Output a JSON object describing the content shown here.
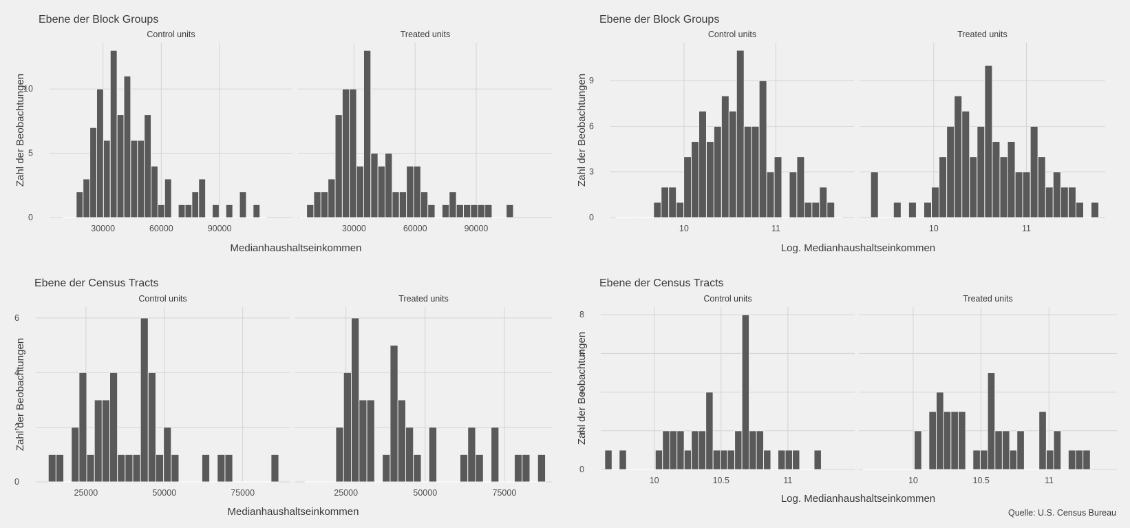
{
  "caption": "Quelle: U.S. Census Bureau",
  "chart_data": [
    {
      "type": "bar",
      "title": "Ebene der Block Groups",
      "xlabel": "Medianhaushaltseinkommen",
      "ylabel": "Zahl der Beobachtungen",
      "x_ticks": [
        30000,
        60000,
        90000
      ],
      "y_ticks": [
        0,
        5,
        10
      ],
      "xlim": [
        2500,
        127500
      ],
      "ylim": [
        0,
        13.6
      ],
      "bin_width": 3500,
      "grid": true,
      "facets": [
        {
          "label": "Control units",
          "bins_start": 9250,
          "counts": [
            0,
            0,
            2,
            3,
            7,
            10,
            6,
            13,
            8,
            11,
            6,
            6,
            8,
            4,
            1,
            3,
            0,
            1,
            1,
            2,
            3,
            0,
            1,
            0,
            1,
            0,
            2,
            0,
            1,
            0
          ]
        },
        {
          "label": "Treated units",
          "bins_start": 3250,
          "counts": [
            0,
            1,
            2,
            2,
            3,
            8,
            10,
            10,
            4,
            13,
            5,
            4,
            5,
            2,
            2,
            4,
            4,
            2,
            1,
            0,
            1,
            2,
            1,
            1,
            1,
            1,
            1,
            0,
            0,
            1
          ]
        }
      ]
    },
    {
      "type": "bar",
      "title": "Ebene der Block Groups",
      "xlabel": "Log. Medianhaushaltseinkommen",
      "ylabel": "Zahl der Beobachtungen",
      "x_ticks": [
        10,
        11
      ],
      "y_ticks": [
        0,
        3,
        6,
        9
      ],
      "xlim": [
        9.2,
        11.85
      ],
      "ylim": [
        0,
        11.5
      ],
      "bin_width": 0.082,
      "grid": true,
      "facets": [
        {
          "label": "Control units",
          "bins_start": 9.26,
          "counts": [
            0,
            0,
            0,
            0,
            0,
            1,
            2,
            2,
            1,
            4,
            5,
            7,
            5,
            6,
            8,
            7,
            11,
            6,
            6,
            9,
            3,
            4,
            0,
            3,
            4,
            1,
            1,
            2,
            1,
            0
          ]
        },
        {
          "label": "Treated units",
          "bins_start": 9.32,
          "counts": [
            3,
            0,
            0,
            1,
            0,
            1,
            0,
            1,
            2,
            4,
            6,
            8,
            7,
            4,
            6,
            10,
            5,
            4,
            5,
            3,
            3,
            6,
            4,
            2,
            3,
            2,
            2,
            1,
            0,
            1
          ]
        }
      ]
    },
    {
      "type": "bar",
      "title": "Ebene der Census Tracts",
      "xlabel": "Medianhaushaltseinkommen",
      "ylabel": "Zahl der Beobachtungen",
      "x_ticks": [
        25000,
        50000,
        75000
      ],
      "y_ticks": [
        0,
        2,
        4,
        6
      ],
      "xlim": [
        9000,
        90000
      ],
      "ylim": [
        0,
        6.4
      ],
      "bin_width": 2450,
      "grid": true,
      "facets": [
        {
          "label": "Control units",
          "bins_start": 13000,
          "counts": [
            1,
            1,
            0,
            2,
            4,
            1,
            3,
            3,
            4,
            1,
            1,
            1,
            6,
            4,
            1,
            2,
            1,
            0,
            0,
            0,
            1,
            0,
            1,
            1,
            0,
            0,
            0,
            0,
            0,
            1
          ]
        },
        {
          "label": "Treated units",
          "bins_start": 12000,
          "counts": [
            0,
            0,
            0,
            0,
            2,
            4,
            6,
            3,
            3,
            0,
            1,
            5,
            3,
            2,
            1,
            0,
            2,
            0,
            0,
            0,
            1,
            2,
            1,
            0,
            2,
            0,
            0,
            1,
            1,
            0,
            1
          ]
        }
      ]
    },
    {
      "type": "bar",
      "title": "Ebene der Census Tracts",
      "xlabel": "Log. Medianhaushaltseinkommen",
      "ylabel": "Zahl der Beobachtungen",
      "x_ticks": [
        10.0,
        10.5,
        11.0
      ],
      "y_ticks": [
        0,
        2,
        4,
        6,
        8
      ],
      "xlim": [
        9.6,
        11.5
      ],
      "ylim": [
        0,
        8.4
      ],
      "bin_width": 0.054,
      "grid": true,
      "facets": [
        {
          "label": "Control units",
          "bins_start": 9.63,
          "counts": [
            1,
            0,
            1,
            0,
            0,
            0,
            0,
            1,
            2,
            2,
            2,
            1,
            2,
            2,
            4,
            1,
            1,
            1,
            2,
            8,
            2,
            2,
            1,
            0,
            1,
            1,
            1,
            0,
            0,
            1
          ]
        },
        {
          "label": "Treated units",
          "bins_start": 9.63,
          "counts": [
            0,
            0,
            0,
            0,
            0,
            0,
            0,
            2,
            0,
            3,
            4,
            3,
            3,
            3,
            0,
            1,
            1,
            5,
            2,
            2,
            1,
            2,
            0,
            0,
            3,
            1,
            2,
            0,
            1,
            1,
            1
          ]
        }
      ]
    }
  ]
}
